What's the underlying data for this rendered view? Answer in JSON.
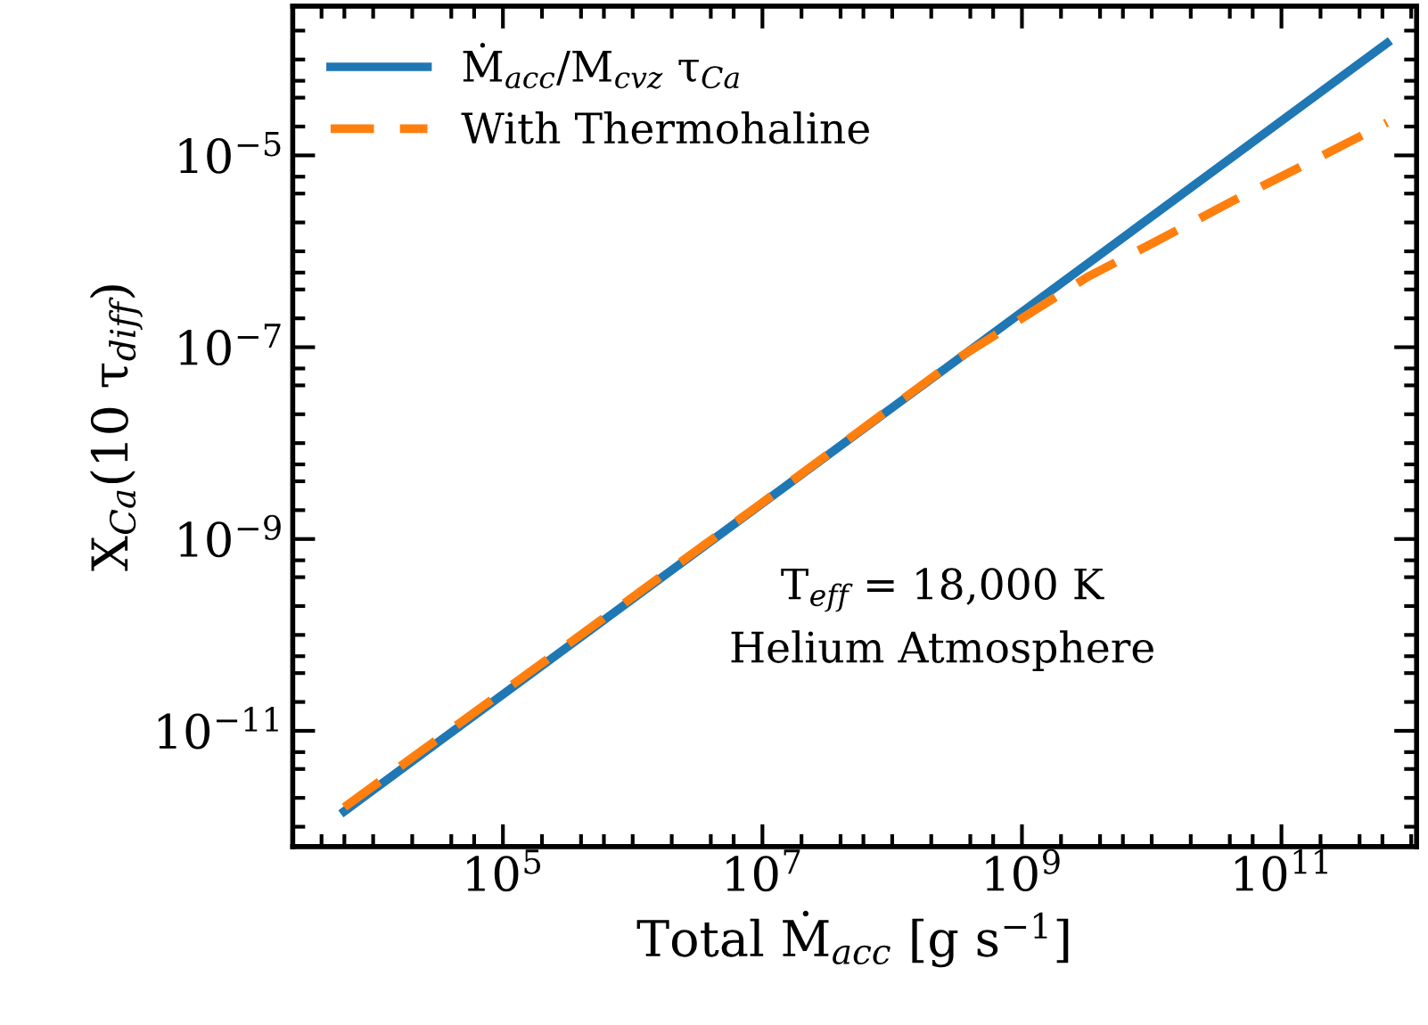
{
  "chart_data": {
    "type": "line",
    "xlabel": "Total Ṁ$_{acc}$ [g s$^{−1}$]",
    "ylabel": "X$_{Ca}$(10 τ$_{diff}$)",
    "log": "xy",
    "legend": "top left",
    "grid": false,
    "xlim": [
      2400.0,
      1100000000000.0
    ],
    "ylim": [
      6.2e-13,
      0.00036
    ],
    "xticks": [
      {
        "value": 100000.0,
        "label": "10$^{5}$"
      },
      {
        "value": 10000000.0,
        "label": "10$^{7}$"
      },
      {
        "value": 1000000000.0,
        "label": "10$^{9}$"
      },
      {
        "value": 100000000000.0,
        "label": "10$^{11}$"
      }
    ],
    "yticks": [
      {
        "value": 1e-11,
        "label": "10$^{−11}$"
      },
      {
        "value": 1e-09,
        "label": "10$^{−9}$"
      },
      {
        "value": 1e-07,
        "label": "10$^{−7}$"
      },
      {
        "value": 1e-05,
        "label": "10$^{−5}$"
      }
    ],
    "annotations": [
      "T$_{eff}$ = 18,000 K",
      "Helium Atmosphere"
    ],
    "series": [
      {
        "name": "Ṁ$_{acc}$/M$_{cvz}$ τ$_{Ca}$",
        "color": "#1f77b4",
        "line_style": "solid",
        "x": [
          6000.0,
          650000000000.0
        ],
        "values": [
          1.45e-12,
          0.000148
        ]
      },
      {
        "name": "With Thermohaline",
        "color": "#ff7f0e",
        "line_style": "dashed",
        "x": [
          6000.0,
          10000000.0,
          320000000.0,
          1000000000.0,
          3200000000.0,
          10000000000.0,
          43000000000.0,
          160000000000.0,
          650000000000.0
        ],
        "values": [
          1.6e-12,
          2.4e-09,
          7.6e-08,
          2e-07,
          5.4e-07,
          1.2e-06,
          3.4e-06,
          8.3e-06,
          2.2e-05
        ]
      }
    ]
  }
}
